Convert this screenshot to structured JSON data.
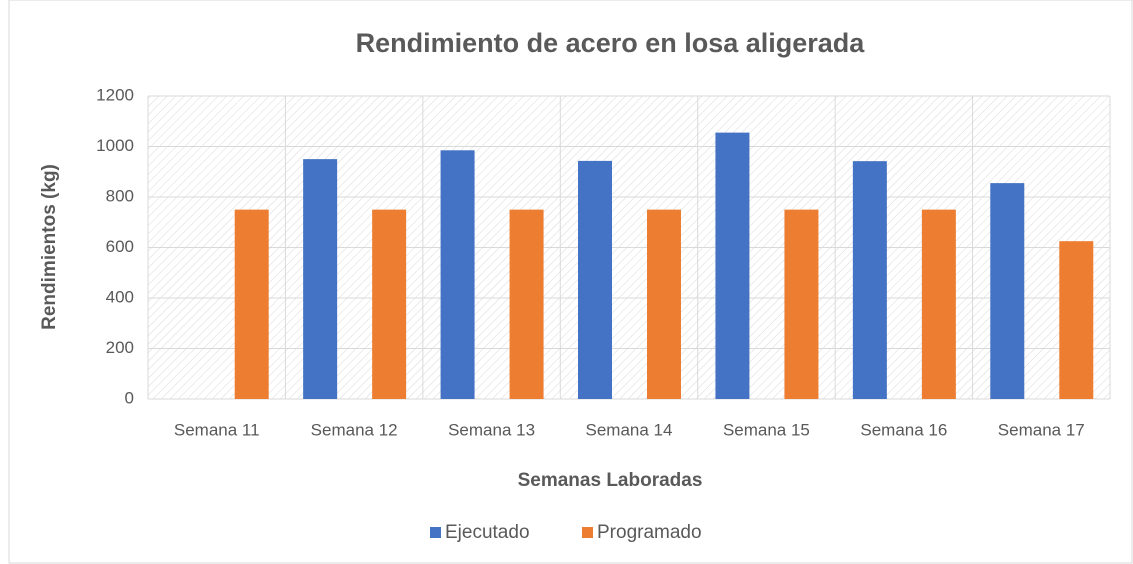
{
  "chart_data": {
    "type": "bar",
    "title": "Rendimiento de acero en losa aligerada",
    "x_label": "Semanas Laboradas",
    "y_label": "Rendimientos (kg)",
    "categories": [
      "Semana 11",
      "Semana 12",
      "Semana 13",
      "Semana 14",
      "Semana 15",
      "Semana 16",
      "Semana 17"
    ],
    "series": [
      {
        "name": "Ejecutado",
        "color": "#4472c4",
        "values": [
          0,
          950,
          985,
          943,
          1055,
          942,
          855
        ]
      },
      {
        "name": "Programado",
        "color": "#ed7d31",
        "values": [
          750,
          750,
          750,
          750,
          750,
          750,
          625
        ]
      }
    ],
    "ylim": [
      0,
      1200
    ],
    "yticks": [
      0,
      200,
      400,
      600,
      800,
      1000,
      1200
    ],
    "grid": true,
    "legend": "bottom"
  }
}
